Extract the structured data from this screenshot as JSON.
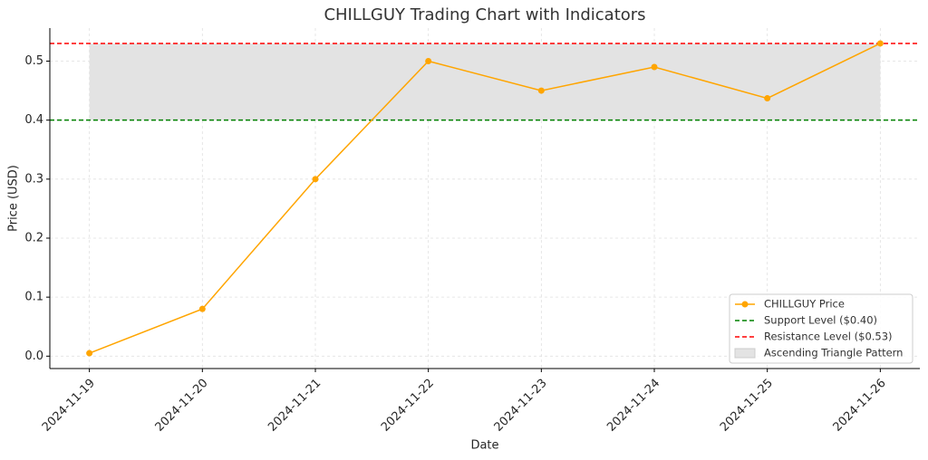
{
  "chart_data": {
    "type": "line",
    "title": "CHILLGUY Trading Chart with Indicators",
    "x_label": "Date",
    "y_label": "Price (USD)",
    "categories": [
      "2024-11-19",
      "2024-11-20",
      "2024-11-21",
      "2024-11-22",
      "2024-11-23",
      "2024-11-24",
      "2024-11-25",
      "2024-11-26"
    ],
    "series": [
      {
        "name": "CHILLGUY Price",
        "color": "#ffa500",
        "values": [
          0.005,
          0.08,
          0.3,
          0.5,
          0.45,
          0.49,
          0.437,
          0.53
        ]
      }
    ],
    "lines": [
      {
        "name": "Support Level ($0.40)",
        "value": 0.4,
        "color": "#008000"
      },
      {
        "name": "Resistance Level ($0.53)",
        "value": 0.53,
        "color": "#ff0000"
      }
    ],
    "band": {
      "name": "Ascending Triangle Pattern",
      "range": [
        0.4,
        0.53
      ],
      "color": "#e3e3e3"
    },
    "ylim": [
      -0.021,
      0.556
    ],
    "yticks": [
      {
        "value": 0,
        "label": "0.0"
      },
      0.1,
      0.2,
      0.3,
      0.4,
      0.5
    ],
    "grid": true,
    "legend": "lower right"
  }
}
